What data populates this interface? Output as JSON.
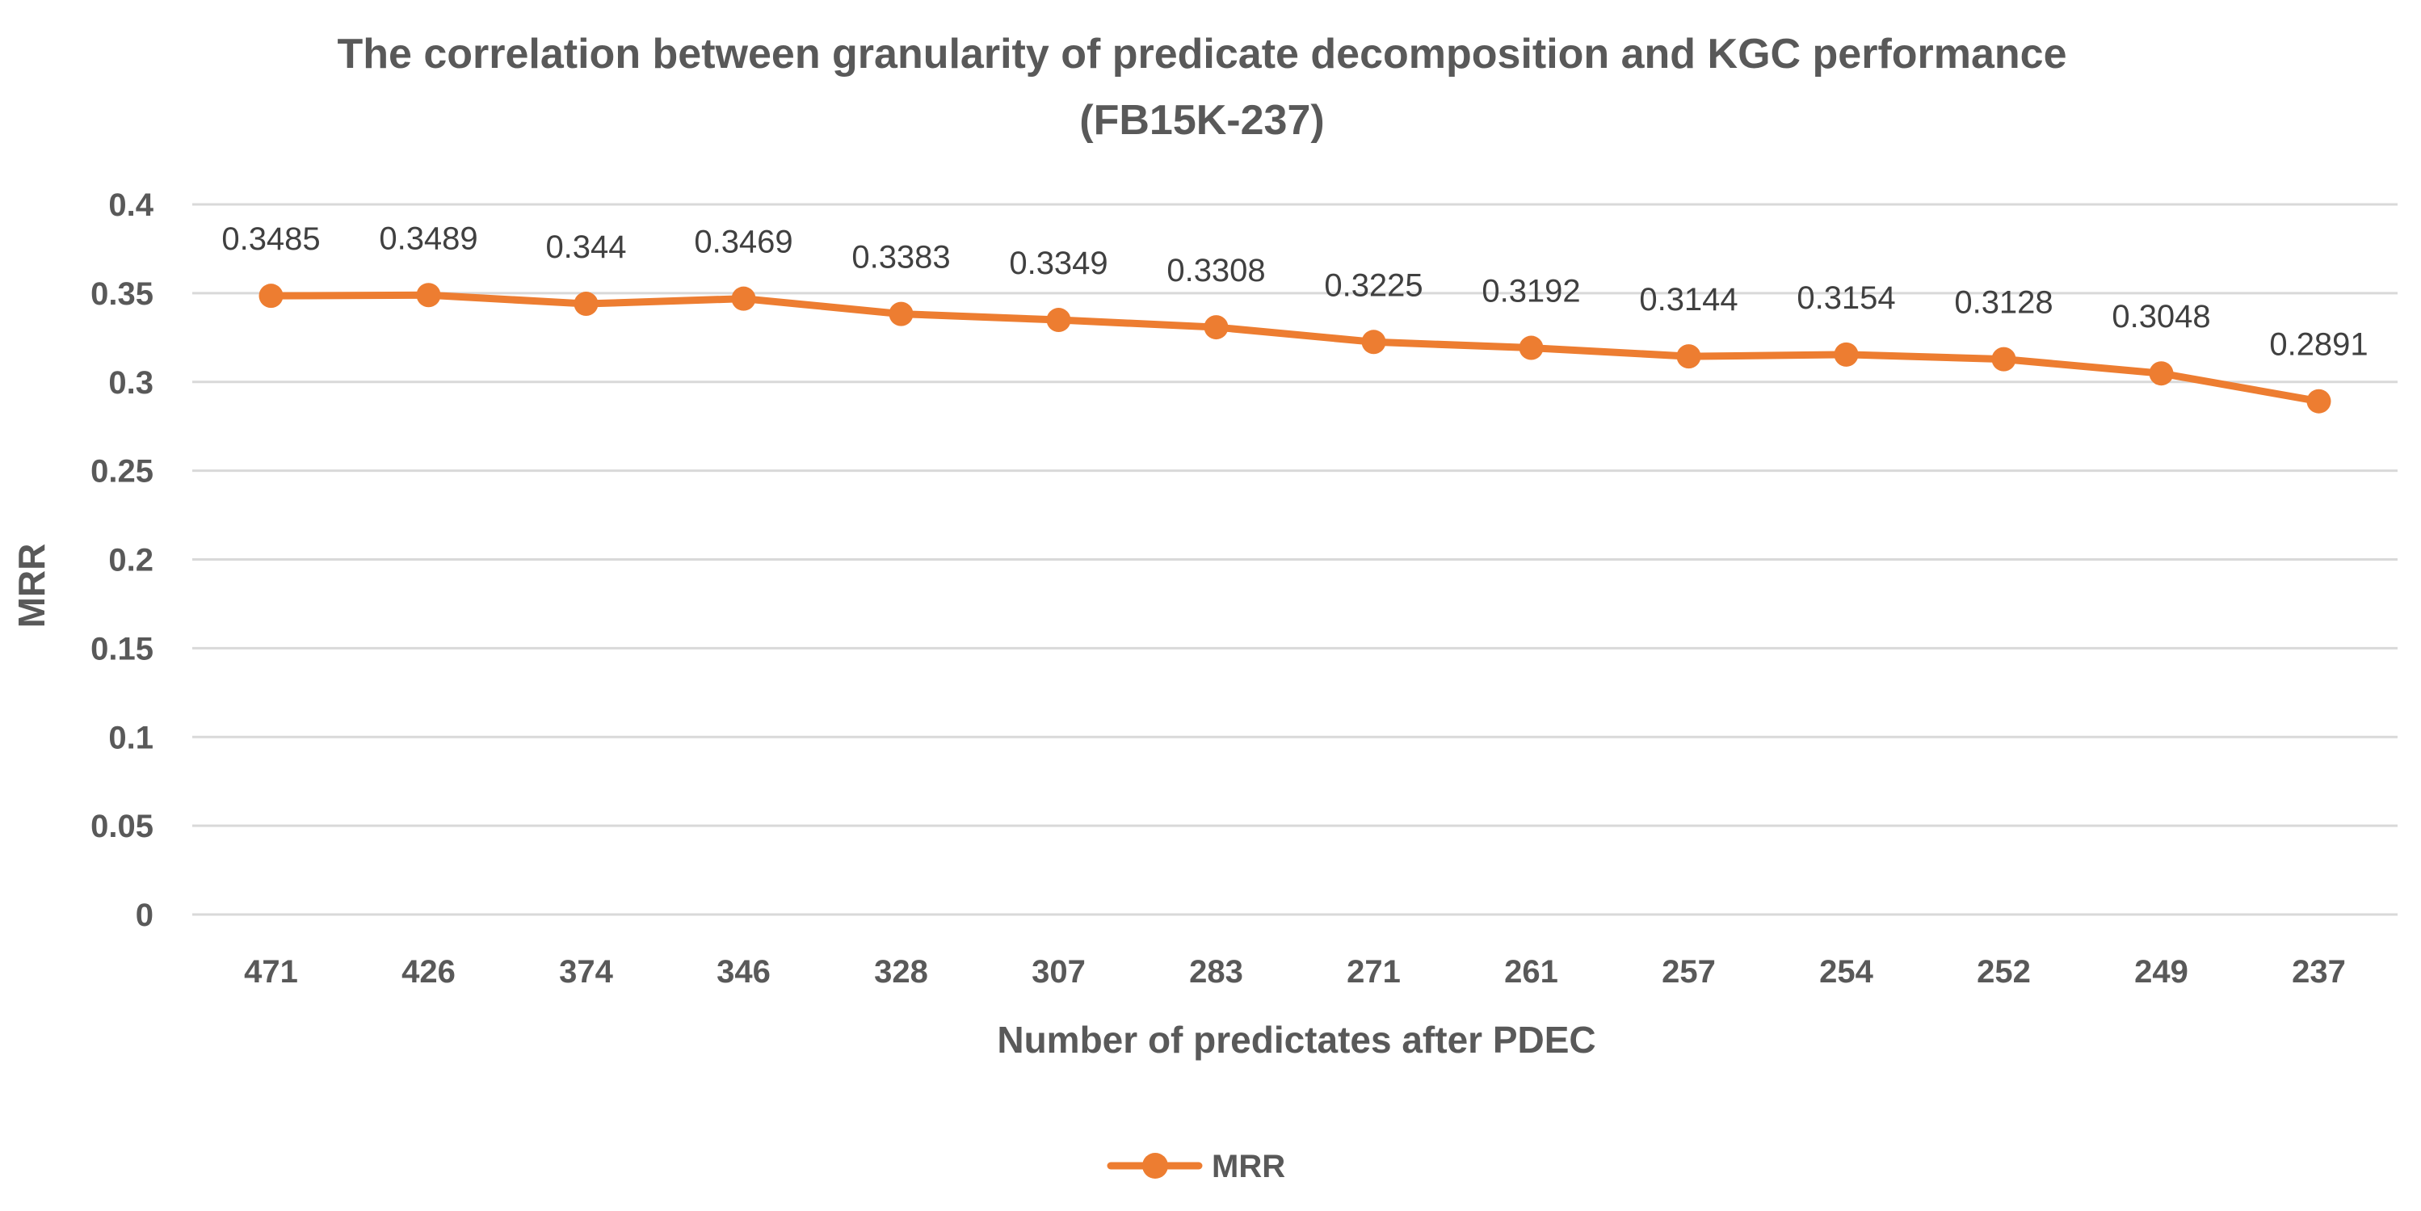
{
  "chart_data": {
    "type": "line",
    "title": "The correlation between granularity of predicate decomposition  and KGC performance",
    "subtitle": "(FB15K-237)",
    "xlabel": "Number of predictates after PDEC",
    "ylabel": "MRR",
    "ylim": [
      0,
      0.4
    ],
    "yticks": [
      "0",
      "0.05",
      "0.1",
      "0.15",
      "0.2",
      "0.25",
      "0.3",
      "0.35",
      "0.4"
    ],
    "ytick_values": [
      0,
      0.05,
      0.1,
      0.15,
      0.2,
      0.25,
      0.3,
      0.35,
      0.4
    ],
    "grid": true,
    "legend": "bottom",
    "categories": [
      "471",
      "426",
      "374",
      "346",
      "328",
      "307",
      "283",
      "271",
      "261",
      "257",
      "254",
      "252",
      "249",
      "237"
    ],
    "series": [
      {
        "name": "MRR",
        "color": "#ed7d31",
        "values": [
          0.3485,
          0.3489,
          0.344,
          0.3469,
          0.3383,
          0.3349,
          0.3308,
          0.3225,
          0.3192,
          0.3144,
          0.3154,
          0.3128,
          0.3048,
          0.2891
        ],
        "labels": [
          "0.3485",
          "0.3489",
          "0.344",
          "0.3469",
          "0.3383",
          "0.3349",
          "0.3308",
          "0.3225",
          "0.3192",
          "0.3144",
          "0.3154",
          "0.3128",
          "0.3048",
          "0.2891"
        ]
      }
    ]
  }
}
